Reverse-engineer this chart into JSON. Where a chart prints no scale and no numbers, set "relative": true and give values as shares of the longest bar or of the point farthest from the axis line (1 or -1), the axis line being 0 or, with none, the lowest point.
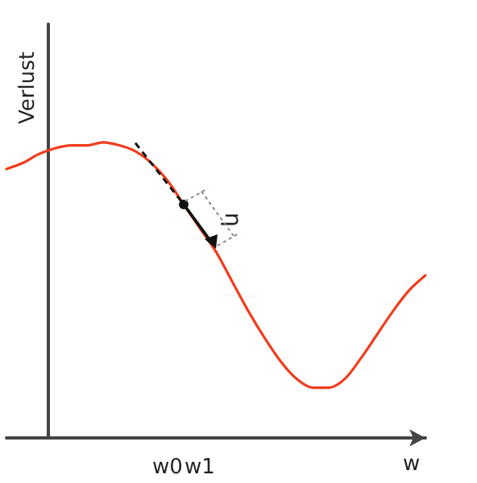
{
  "chart_data": {
    "type": "line",
    "relative": true,
    "xlabel": "w",
    "ylabel": "Verlust",
    "categories": [
      null,
      null,
      null,
      null,
      null,
      null,
      null,
      null,
      null,
      null,
      "w0",
      null,
      "w1",
      null,
      null,
      null,
      null,
      null,
      null,
      null,
      null,
      null,
      null,
      null,
      null,
      null,
      null
    ],
    "series": [
      {
        "color": "#f03c1e",
        "values": [
          0.91,
          0.93,
          0.96,
          0.98,
          0.99,
          0.99,
          1,
          0.99,
          0.97,
          0.93,
          0.87,
          0.79,
          0.71,
          0.63,
          0.53,
          0.43,
          0.34,
          0.26,
          0.2,
          0.17,
          0.17,
          0.2,
          0.27,
          0.35,
          0.43,
          0.5,
          0.55
        ]
      }
    ],
    "annotations": [
      "η"
    ],
    "grid": false,
    "marker": "none",
    "line_style": "solid"
  }
}
